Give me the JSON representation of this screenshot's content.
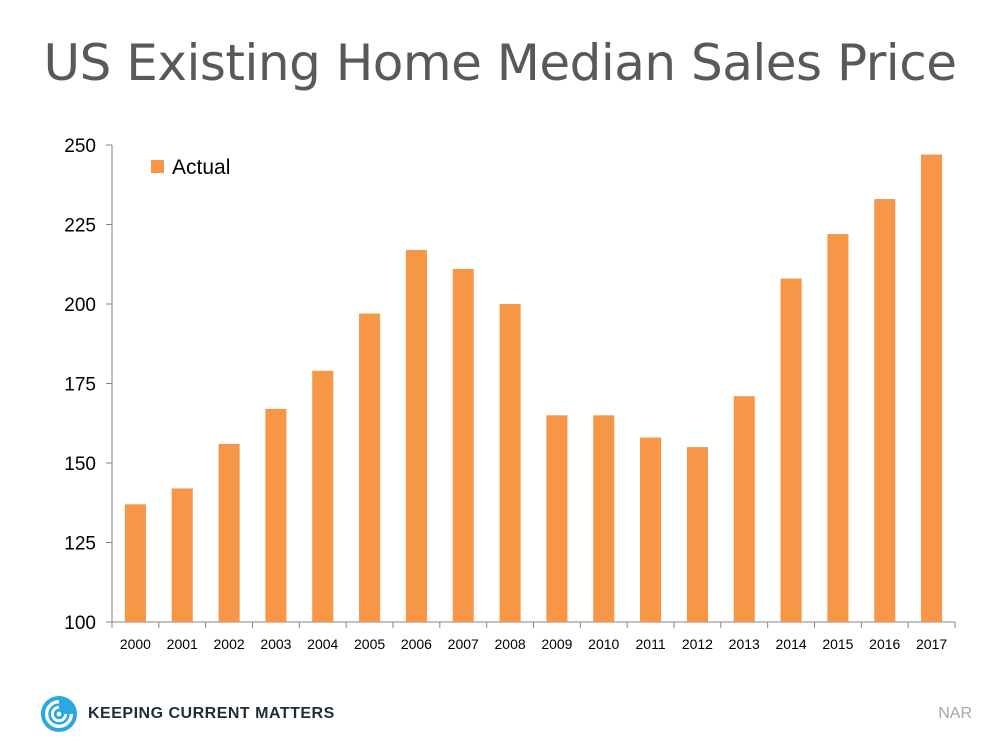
{
  "chart_data": {
    "type": "bar",
    "title": "US Existing Home Median Sales Price",
    "categories": [
      "2000",
      "2001",
      "2002",
      "2003",
      "2004",
      "2005",
      "2006",
      "2007",
      "2008",
      "2009",
      "2010",
      "2011",
      "2012",
      "2013",
      "2014",
      "2015",
      "2016",
      "2017"
    ],
    "series": [
      {
        "name": "Actual",
        "values": [
          137,
          142,
          156,
          167,
          179,
          197,
          217,
          211,
          200,
          165,
          165,
          158,
          155,
          171,
          208,
          222,
          233,
          247
        ],
        "color": "#F79646"
      }
    ],
    "ylim": [
      100,
      250
    ],
    "yticks": [
      "100",
      "125",
      "150",
      "175",
      "200",
      "225",
      "250"
    ],
    "xlabel": "",
    "ylabel": "",
    "grid": false,
    "legend_position": "top-left"
  },
  "branding": {
    "logo_text_first": "Keeping",
    "logo_text_second": "Current",
    "logo_text_third": "Matters",
    "logo_color": "#29A9E0",
    "source": "NAR"
  }
}
